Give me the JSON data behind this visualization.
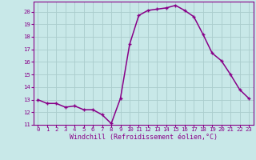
{
  "x": [
    0,
    1,
    2,
    3,
    4,
    5,
    6,
    7,
    8,
    9,
    10,
    11,
    12,
    13,
    14,
    15,
    16,
    17,
    18,
    19,
    20,
    21,
    22,
    23
  ],
  "y": [
    13.0,
    12.7,
    12.7,
    12.4,
    12.5,
    12.2,
    12.2,
    11.8,
    11.1,
    13.1,
    17.4,
    19.7,
    20.1,
    20.2,
    20.3,
    20.5,
    20.1,
    19.6,
    18.2,
    16.7,
    16.1,
    15.0,
    13.8,
    13.1
  ],
  "line_color": "#880088",
  "marker": "+",
  "bg_color": "#c8e8e8",
  "grid_color": "#aacccc",
  "xlabel": "Windchill (Refroidissement éolien,°C)",
  "xlim": [
    -0.5,
    23.5
  ],
  "ylim": [
    11,
    20.8
  ],
  "yticks": [
    11,
    12,
    13,
    14,
    15,
    16,
    17,
    18,
    19,
    20
  ],
  "xticks": [
    0,
    1,
    2,
    3,
    4,
    5,
    6,
    7,
    8,
    9,
    10,
    11,
    12,
    13,
    14,
    15,
    16,
    17,
    18,
    19,
    20,
    21,
    22,
    23
  ],
  "label_fontsize": 6.0,
  "tick_fontsize": 5.2,
  "line_width": 1.1,
  "marker_size": 3.5,
  "text_color": "#880088"
}
